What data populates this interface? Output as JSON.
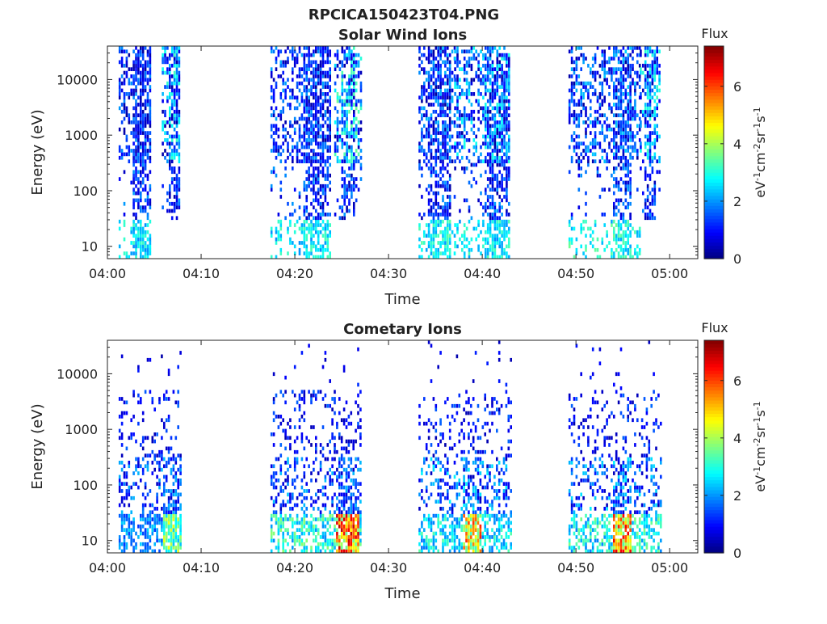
{
  "figure_title": "RPCICA150423T04.PNG",
  "chart_data": [
    {
      "type": "heatmap",
      "title": "Solar Wind Ions",
      "xlabel": "Time",
      "ylabel": "Energy (eV)",
      "x_ticks": [
        "04:00",
        "04:10",
        "04:20",
        "04:30",
        "04:40",
        "04:50",
        "05:00"
      ],
      "x_tick_values": [
        0,
        10,
        20,
        30,
        40,
        50,
        60
      ],
      "xlim": [
        0,
        63
      ],
      "y_scale": "log",
      "y_ticks": [
        "10",
        "100",
        "1000",
        "10000"
      ],
      "y_tick_values": [
        10,
        100,
        1000,
        10000
      ],
      "ylim": [
        6,
        40000
      ],
      "colorbar": {
        "title": "Flux",
        "label": "eV-1cm-2sr-1s-1",
        "ticks": [
          "0",
          "2",
          "4",
          "6"
        ],
        "tick_values": [
          0,
          2,
          4,
          6
        ],
        "range": [
          0,
          7.4
        ],
        "colormap": "jet"
      },
      "data_bursts": [
        {
          "start_min": 1.2,
          "end_min": 4.6,
          "peak_min": 3.6,
          "peak_width": 0.9,
          "mid_level": 1.3,
          "low_level": 2.7
        },
        {
          "start_min": 5.8,
          "end_min": 7.6,
          "peak_min": 7.0,
          "peak_width": 0.6,
          "mid_level": 2.2,
          "low_level": 0.0
        },
        {
          "start_min": 17.4,
          "end_min": 23.8,
          "peak_min": 22.4,
          "peak_width": 1.6,
          "mid_level": 1.4,
          "low_level": 2.8
        },
        {
          "start_min": 24.2,
          "end_min": 27.0,
          "peak_min": 25.5,
          "peak_width": 0.8,
          "mid_level": 2.4,
          "low_level": 0.0
        },
        {
          "start_min": 33.2,
          "end_min": 37.0,
          "peak_min": 35.3,
          "peak_width": 1.2,
          "mid_level": 1.5,
          "low_level": 2.9
        },
        {
          "start_min": 37.0,
          "end_min": 43.0,
          "peak_min": 41.5,
          "peak_width": 1.5,
          "mid_level": 2.0,
          "low_level": 2.8
        },
        {
          "start_min": 49.2,
          "end_min": 56.8,
          "peak_min": 54.8,
          "peak_width": 1.0,
          "mid_level": 1.6,
          "low_level": 3.0
        },
        {
          "start_min": 56.8,
          "end_min": 59.0,
          "peak_min": 57.8,
          "peak_width": 0.7,
          "mid_level": 2.2,
          "low_level": 0.0
        }
      ]
    },
    {
      "type": "heatmap",
      "title": "Cometary Ions",
      "xlabel": "Time",
      "ylabel": "Energy (eV)",
      "x_ticks": [
        "04:00",
        "04:10",
        "04:20",
        "04:30",
        "04:40",
        "04:50",
        "05:00"
      ],
      "x_tick_values": [
        0,
        10,
        20,
        30,
        40,
        50,
        60
      ],
      "xlim": [
        0,
        63
      ],
      "y_scale": "log",
      "y_ticks": [
        "10",
        "100",
        "1000",
        "10000"
      ],
      "y_tick_values": [
        10,
        100,
        1000,
        10000
      ],
      "ylim": [
        6,
        40000
      ],
      "colorbar": {
        "title": "Flux",
        "label": "eV-1cm-2sr-1s-1",
        "ticks": [
          "0",
          "2",
          "4",
          "6"
        ],
        "tick_values": [
          0,
          2,
          4,
          6
        ],
        "range": [
          0,
          7.4
        ],
        "colormap": "jet"
      },
      "data_bursts": [
        {
          "start_min": 1.2,
          "end_min": 7.8,
          "peak_min": 6.8,
          "peak_width": 1.0,
          "mid_level": 1.5,
          "low_level": 3.8
        },
        {
          "start_min": 17.4,
          "end_min": 27.0,
          "peak_min": 25.5,
          "peak_width": 1.2,
          "mid_level": 1.5,
          "low_level": 5.8
        },
        {
          "start_min": 33.2,
          "end_min": 43.0,
          "peak_min": 38.8,
          "peak_width": 1.0,
          "mid_level": 1.8,
          "low_level": 5.2
        },
        {
          "start_min": 49.2,
          "end_min": 59.0,
          "peak_min": 54.8,
          "peak_width": 1.0,
          "mid_level": 1.8,
          "low_level": 5.6
        }
      ]
    }
  ]
}
